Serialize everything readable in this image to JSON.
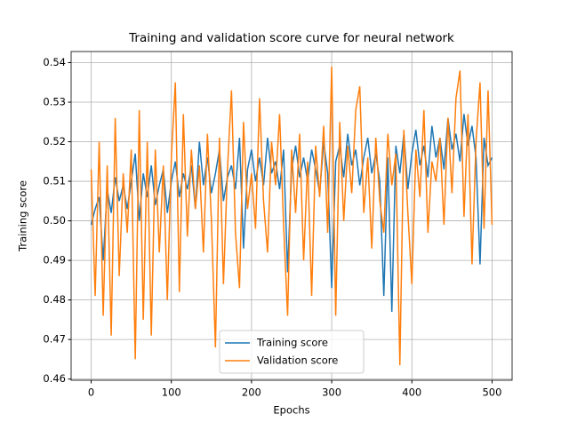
{
  "chart_data": {
    "type": "line",
    "title": "Training and validation score curve for neural network",
    "xlabel": "Epochs",
    "ylabel": "Training score",
    "x": [
      0,
      5,
      10,
      15,
      20,
      25,
      30,
      35,
      40,
      45,
      50,
      55,
      60,
      65,
      70,
      75,
      80,
      85,
      90,
      95,
      100,
      105,
      110,
      115,
      120,
      125,
      130,
      135,
      140,
      145,
      150,
      155,
      160,
      165,
      170,
      175,
      180,
      185,
      190,
      195,
      200,
      205,
      210,
      215,
      220,
      225,
      230,
      235,
      240,
      245,
      250,
      255,
      260,
      265,
      270,
      275,
      280,
      285,
      290,
      295,
      300,
      305,
      310,
      315,
      320,
      325,
      330,
      335,
      340,
      345,
      350,
      355,
      360,
      365,
      370,
      375,
      380,
      385,
      390,
      395,
      400,
      405,
      410,
      415,
      420,
      425,
      430,
      435,
      440,
      445,
      450,
      455,
      460,
      465,
      470,
      475,
      480,
      485,
      490,
      495,
      500
    ],
    "series": [
      {
        "name": "Training score",
        "color": "#1f77b4",
        "values": [
          0.499,
          0.503,
          0.506,
          0.49,
          0.508,
          0.502,
          0.511,
          0.505,
          0.509,
          0.503,
          0.51,
          0.517,
          0.5,
          0.512,
          0.506,
          0.514,
          0.504,
          0.509,
          0.513,
          0.502,
          0.51,
          0.515,
          0.506,
          0.512,
          0.508,
          0.514,
          0.503,
          0.52,
          0.509,
          0.516,
          0.507,
          0.512,
          0.518,
          0.505,
          0.511,
          0.514,
          0.508,
          0.521,
          0.493,
          0.513,
          0.518,
          0.51,
          0.516,
          0.509,
          0.521,
          0.512,
          0.515,
          0.508,
          0.518,
          0.487,
          0.513,
          0.519,
          0.511,
          0.516,
          0.51,
          0.518,
          0.513,
          0.507,
          0.52,
          0.512,
          0.483,
          0.515,
          0.519,
          0.511,
          0.522,
          0.514,
          0.518,
          0.509,
          0.516,
          0.521,
          0.512,
          0.517,
          0.51,
          0.481,
          0.516,
          0.477,
          0.519,
          0.512,
          0.522,
          0.508,
          0.517,
          0.523,
          0.514,
          0.519,
          0.511,
          0.524,
          0.516,
          0.521,
          0.513,
          0.526,
          0.518,
          0.522,
          0.515,
          0.527,
          0.519,
          0.524,
          0.516,
          0.489,
          0.521,
          0.514,
          0.516
        ]
      },
      {
        "name": "Validation score",
        "color": "#ff7f0e",
        "values": [
          0.513,
          0.481,
          0.52,
          0.476,
          0.514,
          0.471,
          0.526,
          0.486,
          0.512,
          0.497,
          0.518,
          0.465,
          0.528,
          0.475,
          0.52,
          0.471,
          0.518,
          0.492,
          0.514,
          0.48,
          0.516,
          0.535,
          0.482,
          0.527,
          0.496,
          0.518,
          0.503,
          0.514,
          0.492,
          0.522,
          0.5,
          0.468,
          0.521,
          0.484,
          0.513,
          0.533,
          0.497,
          0.483,
          0.525,
          0.503,
          0.512,
          0.498,
          0.531,
          0.505,
          0.492,
          0.52,
          0.509,
          0.527,
          0.499,
          0.476,
          0.518,
          0.502,
          0.522,
          0.49,
          0.515,
          0.481,
          0.519,
          0.506,
          0.524,
          0.497,
          0.539,
          0.476,
          0.525,
          0.5,
          0.519,
          0.507,
          0.528,
          0.534,
          0.502,
          0.516,
          0.493,
          0.521,
          0.505,
          0.497,
          0.522,
          0.509,
          0.517,
          0.4635,
          0.523,
          0.502,
          0.484,
          0.518,
          0.506,
          0.528,
          0.497,
          0.515,
          0.51,
          0.521,
          0.499,
          0.526,
          0.507,
          0.531,
          0.538,
          0.501,
          0.527,
          0.489,
          0.52,
          0.535,
          0.498,
          0.533,
          0.499
        ]
      }
    ],
    "xlim": [
      -25,
      525
    ],
    "ylim": [
      0.4597,
      0.5428
    ],
    "xticks": [
      0,
      100,
      200,
      300,
      400,
      500
    ],
    "yticks": [
      0.46,
      0.47,
      0.48,
      0.49,
      0.5,
      0.51,
      0.52,
      0.53,
      0.54
    ],
    "grid": true,
    "legend": "lower center"
  }
}
